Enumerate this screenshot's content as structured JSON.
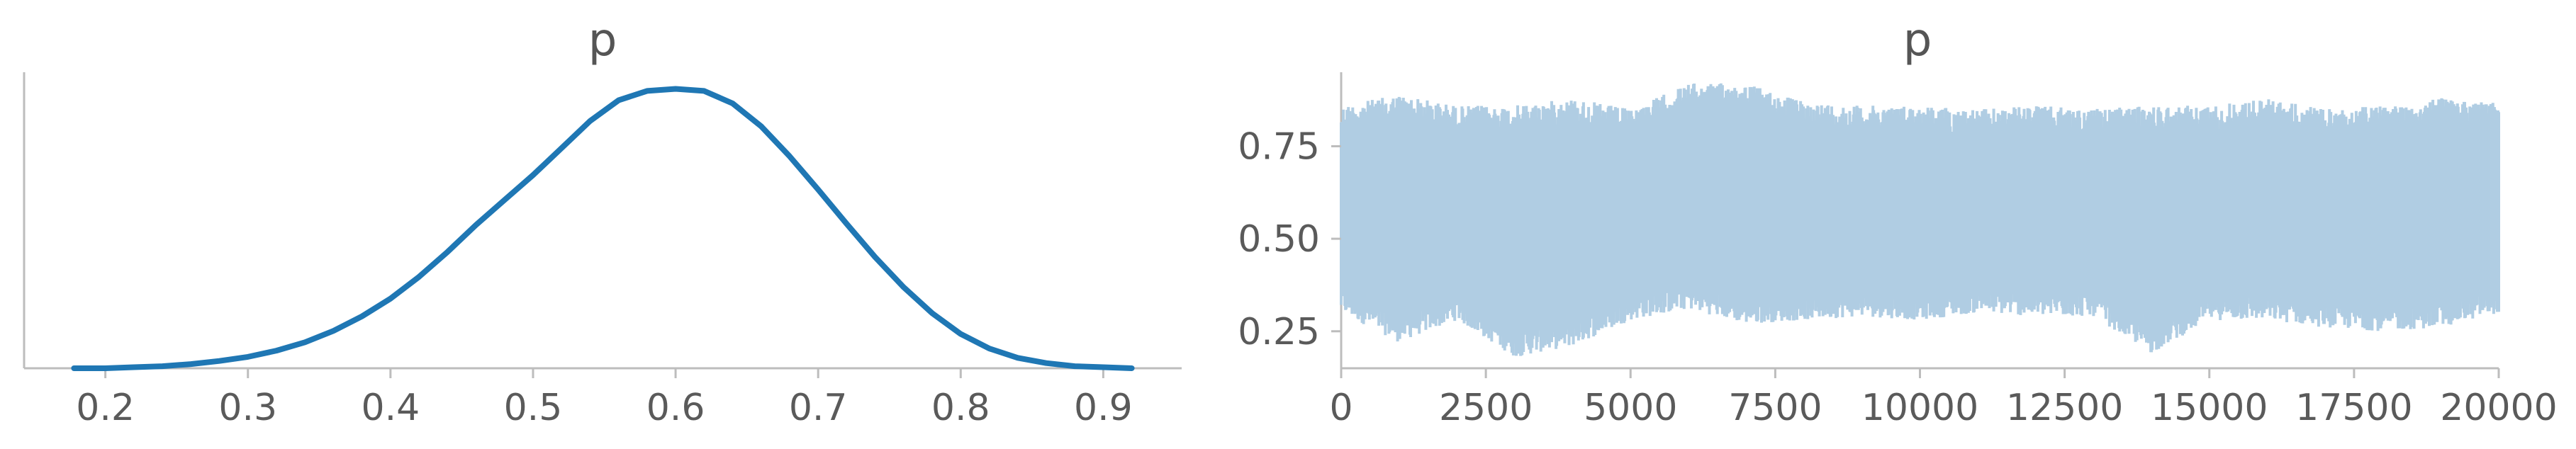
{
  "colors": {
    "kde_line": "#1f77b4",
    "trace_fill": "#b0cde3",
    "axis": "#bdbdbd",
    "text": "#5a5a5a"
  },
  "chart_data": [
    {
      "type": "line",
      "title": "p",
      "xlabel": "",
      "ylabel": "",
      "xlim": [
        0.143,
        0.955
      ],
      "ylim": [
        0,
        2.85
      ],
      "xticks": [
        "0.2",
        "0.3",
        "0.4",
        "0.5",
        "0.6",
        "0.7",
        "0.8",
        "0.9"
      ],
      "yticks": [],
      "grid": false,
      "series": [
        {
          "x": [
            0.178,
            0.2,
            0.22,
            0.24,
            0.26,
            0.28,
            0.3,
            0.32,
            0.34,
            0.36,
            0.38,
            0.4,
            0.42,
            0.44,
            0.46,
            0.48,
            0.5,
            0.52,
            0.54,
            0.56,
            0.58,
            0.6,
            0.62,
            0.64,
            0.66,
            0.68,
            0.7,
            0.72,
            0.74,
            0.76,
            0.78,
            0.8,
            0.82,
            0.84,
            0.86,
            0.88,
            0.9,
            0.92
          ],
          "y": [
            0.0,
            0.0,
            0.01,
            0.02,
            0.04,
            0.07,
            0.11,
            0.17,
            0.25,
            0.36,
            0.5,
            0.67,
            0.88,
            1.12,
            1.38,
            1.62,
            1.86,
            2.12,
            2.38,
            2.58,
            2.67,
            2.69,
            2.67,
            2.55,
            2.33,
            2.04,
            1.72,
            1.39,
            1.07,
            0.78,
            0.53,
            0.33,
            0.19,
            0.1,
            0.05,
            0.02,
            0.01,
            0.0
          ]
        }
      ]
    },
    {
      "type": "area",
      "title": "p",
      "xlabel": "",
      "ylabel": "",
      "xlim": [
        0,
        20000
      ],
      "ylim": [
        0.15,
        0.95
      ],
      "xticks": [
        "0",
        "2500",
        "5000",
        "7500",
        "10000",
        "12500",
        "15000",
        "17500",
        "20000"
      ],
      "yticks": [
        "0.25",
        "0.50",
        "0.75"
      ],
      "grid": false,
      "series": [
        {
          "x": [
            0,
            1000,
            2000,
            3000,
            4000,
            5000,
            6000,
            7000,
            8000,
            9000,
            10000,
            11000,
            12000,
            13000,
            14000,
            15000,
            16000,
            17000,
            18000,
            19000,
            20000
          ],
          "upper": [
            0.86,
            0.89,
            0.86,
            0.86,
            0.88,
            0.85,
            0.92,
            0.92,
            0.87,
            0.86,
            0.86,
            0.85,
            0.86,
            0.85,
            0.86,
            0.86,
            0.88,
            0.85,
            0.86,
            0.88,
            0.87
          ],
          "lower": [
            0.3,
            0.22,
            0.28,
            0.18,
            0.21,
            0.28,
            0.31,
            0.27,
            0.28,
            0.29,
            0.28,
            0.3,
            0.29,
            0.29,
            0.19,
            0.28,
            0.28,
            0.26,
            0.25,
            0.26,
            0.3
          ]
        }
      ]
    }
  ]
}
